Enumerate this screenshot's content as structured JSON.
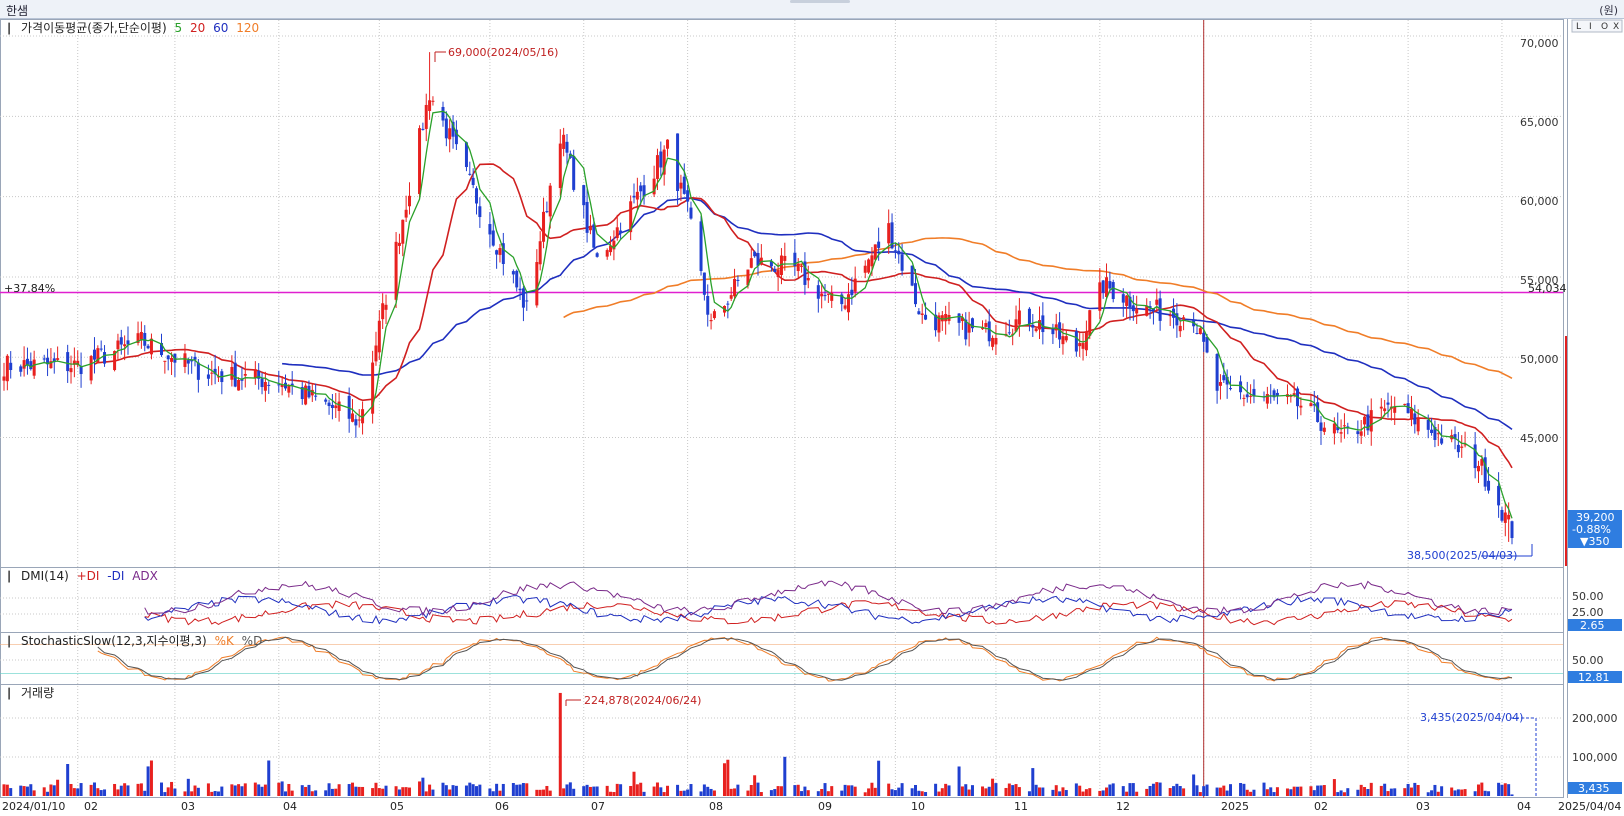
{
  "window": {
    "title": "한샘",
    "unit_label": "(원)"
  },
  "panel_buttons": [
    "L",
    "I",
    "O",
    "X"
  ],
  "price_panel": {
    "legend_title": "가격이동평균(종가,단순이평)",
    "ma_periods": [
      {
        "label": "5",
        "color": "#2aa12a"
      },
      {
        "label": "20",
        "color": "#d02020"
      },
      {
        "label": "60",
        "color": "#1f2fbf"
      },
      {
        "label": "120",
        "color": "#f07d28"
      }
    ],
    "y_ticks": [
      "70,000",
      "65,000",
      "60,000",
      "55,000",
      "50,000",
      "45,000"
    ],
    "high_annotation": "69,000(2024/05/16)",
    "low_annotation": "38,500(2025/04/03)",
    "hline_left_label": "+37.84%",
    "hline_right_label": "54,034",
    "hline_value": 54034,
    "current_price": "39,200",
    "current_change_pct": "-0.88%",
    "current_change": "▼350"
  },
  "dmi_panel": {
    "title": "DMI(14)",
    "legend": [
      {
        "label": "+DI",
        "color": "#d02020"
      },
      {
        "label": "-DI",
        "color": "#1f2fbf"
      },
      {
        "label": "ADX",
        "color": "#7a2a8a"
      }
    ],
    "y_ticks": [
      "50.00",
      "25.00"
    ],
    "current_value": "2.65"
  },
  "stoch_panel": {
    "title": "StochasticSlow(12,3,지수이평,3)",
    "legend": [
      {
        "label": "%K",
        "color": "#f07d28"
      },
      {
        "label": "%D",
        "color": "#555555"
      }
    ],
    "y_ticks": [
      "50.00"
    ],
    "current_value": "12.81"
  },
  "volume_panel": {
    "title": "거래량",
    "y_ticks": [
      "200,000",
      "100,000"
    ],
    "high_annotation": "224,878(2024/06/24)",
    "last_annotation": "3,435(2025/04/04)",
    "current_value": "3,435"
  },
  "x_axis": {
    "labels": [
      "2024/01/10",
      "02",
      "03",
      "04",
      "05",
      "06",
      "07",
      "08",
      "09",
      "10",
      "11",
      "12",
      "2025",
      "02",
      "03",
      "04",
      "2025/04/04"
    ]
  },
  "colors": {
    "up": "#e8211f",
    "down": "#1f3fd0",
    "hline": "#e020d0",
    "year_divider": "#b03030",
    "current_box": "#2f7de0",
    "grid": "#c8c8c8"
  },
  "chart_data": {
    "type": "line",
    "title": "가격이동평균(종가,단순이평)",
    "y_unit": "원",
    "x_range": [
      "2024/01/10",
      "2025/04/04"
    ],
    "ylim": [
      37000,
      71000
    ],
    "close_approx": [
      [
        "2024/01/10",
        49500
      ],
      [
        "2024/02/01",
        49500
      ],
      [
        "2024/02/20",
        51000
      ],
      [
        "2024/03/10",
        49000
      ],
      [
        "2024/04/01",
        48500
      ],
      [
        "2024/04/25",
        46000
      ],
      [
        "2024/05/16",
        66500
      ],
      [
        "2024/06/03",
        58000
      ],
      [
        "2024/06/14",
        53000
      ],
      [
        "2024/06/24",
        64000
      ],
      [
        "2024/07/05",
        56000
      ],
      [
        "2024/07/26",
        63000
      ],
      [
        "2024/08/01",
        59000
      ],
      [
        "2024/08/08",
        52000
      ],
      [
        "2024/08/20",
        56000
      ],
      [
        "2024/09/02",
        55500
      ],
      [
        "2024/09/15",
        53000
      ],
      [
        "2024/09/30",
        58000
      ],
      [
        "2024/10/10",
        52500
      ],
      [
        "2024/10/28",
        51500
      ],
      [
        "2024/11/11",
        52500
      ],
      [
        "2024/11/25",
        50500
      ],
      [
        "2024/12/03",
        54500
      ],
      [
        "2024/12/16",
        53000
      ],
      [
        "2024/12/30",
        52500
      ],
      [
        "2025/01/06",
        48000
      ],
      [
        "2025/01/31",
        47000
      ],
      [
        "2025/02/12",
        45000
      ],
      [
        "2025/02/28",
        47000
      ],
      [
        "2025/03/14",
        45000
      ],
      [
        "2025/03/25",
        43500
      ],
      [
        "2025/04/04",
        39200
      ]
    ],
    "series": [
      {
        "name": "5",
        "color": "#2aa12a"
      },
      {
        "name": "20",
        "color": "#d02020"
      },
      {
        "name": "60",
        "color": "#1f2fbf"
      },
      {
        "name": "120",
        "color": "#f07d28"
      }
    ],
    "annotations": [
      {
        "text": "69,000(2024/05/16)",
        "x": "2024/05/16",
        "y": 69000
      },
      {
        "text": "38,500(2025/04/03)",
        "x": "2025/04/03",
        "y": 38500
      },
      {
        "text": "54,034",
        "y": 54034
      }
    ],
    "volume": {
      "ylim": [
        0,
        240000
      ],
      "peak": {
        "x": "2024/06/24",
        "y": 224878
      },
      "last": {
        "x": "2025/04/04",
        "y": 3435
      }
    },
    "legend_position": "top-left",
    "grid": true
  }
}
